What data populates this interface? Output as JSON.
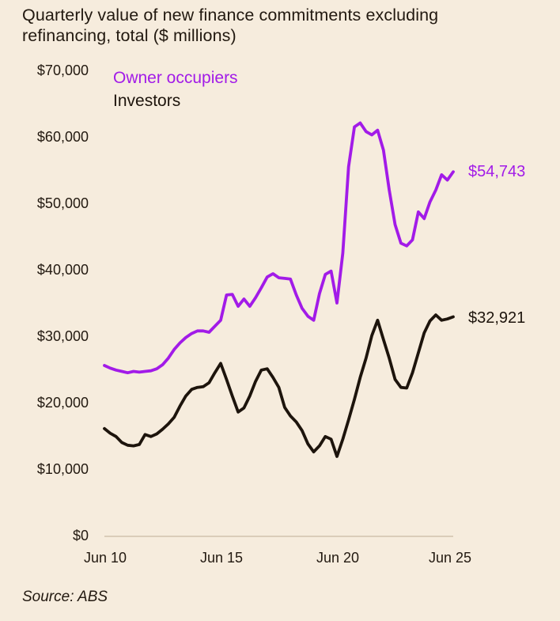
{
  "title": "Quarterly value of new finance commitments excluding refinancing, total ($ millions)",
  "source": "Source: ABS",
  "colors": {
    "background": "#F6ECDD",
    "owner_occupiers": "#A21BE8",
    "investors": "#1D140C",
    "text": "#221910",
    "baseline": "#DACDB9"
  },
  "legend": {
    "owner_occupiers_label": "Owner occupiers",
    "investors_label": "Investors"
  },
  "end_labels": {
    "owner_occupiers": "$54,743",
    "investors": "$32,921"
  },
  "y_axis": {
    "tick_labels": [
      "$70,000",
      "$60,000",
      "$50,000",
      "$40,000",
      "$30,000",
      "$20,000",
      "$10,000",
      "$0"
    ]
  },
  "x_axis": {
    "tick_labels": [
      "Jun 10",
      "Jun 15",
      "Jun 20",
      "Jun 25"
    ]
  },
  "chart_data": {
    "type": "line",
    "title": "Quarterly value of new finance commitments excluding refinancing, total ($ millions)",
    "x_unit": "quarter",
    "x_start": "Jun 2010",
    "x_end": "Jun 2025",
    "points_per_series": 61,
    "ylim": [
      0,
      70000
    ],
    "grid": "zero-baseline-only",
    "legend_position": "top-left-inside",
    "x_tick_labels": [
      "Jun 10",
      "Jun 15",
      "Jun 20",
      "Jun 25"
    ],
    "y_tick_values": [
      0,
      10000,
      20000,
      30000,
      40000,
      50000,
      60000,
      70000
    ],
    "series": [
      {
        "name": "Owner occupiers",
        "color": "#A21BE8",
        "end_label": "$54,743",
        "last_value": 54743,
        "values": [
          25600,
          25200,
          24900,
          24700,
          24500,
          24700,
          24600,
          24700,
          24800,
          25100,
          25700,
          26700,
          28000,
          29000,
          29800,
          30400,
          30800,
          30800,
          30600,
          31500,
          32400,
          36200,
          36300,
          34500,
          35600,
          34500,
          35800,
          37300,
          38900,
          39400,
          38800,
          38700,
          38600,
          36200,
          34200,
          33000,
          32400,
          36400,
          39300,
          39800,
          35000,
          42500,
          55500,
          61500,
          62100,
          60800,
          60300,
          61000,
          58000,
          52000,
          46800,
          44000,
          43600,
          44500,
          48700,
          47700,
          50200,
          52000,
          54300,
          53500,
          54743
        ]
      },
      {
        "name": "Investors",
        "color": "#1D140C",
        "end_label": "$32,921",
        "last_value": 32921,
        "values": [
          16100,
          15400,
          14900,
          14000,
          13600,
          13500,
          13700,
          15200,
          14900,
          15300,
          16000,
          16800,
          17800,
          19500,
          21000,
          22000,
          22300,
          22400,
          23000,
          24500,
          25900,
          23500,
          21000,
          18600,
          19200,
          21000,
          23200,
          24900,
          25100,
          23800,
          22300,
          19300,
          18000,
          17100,
          15800,
          13800,
          12600,
          13500,
          14900,
          14500,
          11900,
          14500,
          17400,
          20500,
          23800,
          26700,
          30100,
          32400,
          29500,
          26700,
          23500,
          22300,
          22200,
          24500,
          27500,
          30500,
          32300,
          33200,
          32400,
          32600,
          32921
        ]
      }
    ]
  }
}
